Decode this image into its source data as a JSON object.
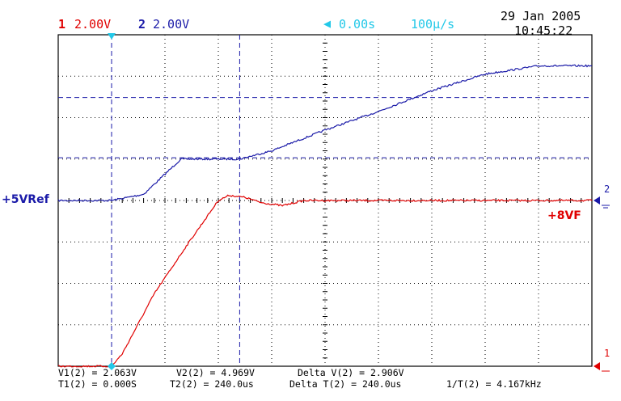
{
  "header": {
    "ch1_number": "1",
    "ch1_scale": "2.00V",
    "ch2_number": "2",
    "ch2_scale": "2.00V",
    "delay": "0.00s",
    "timebase": "100µ/s",
    "date": "29 Jan 2005",
    "time": "10:45:22"
  },
  "markers": {
    "ch2_left_label": "+5VRef",
    "ch1_right_label": "+8VF",
    "ch2_right_tag": "2",
    "ch1_right_tag": "1"
  },
  "measurements": {
    "v1": "V1(2) = 2.063V",
    "v2": "V2(2) = 4.969V",
    "delta_v": "Delta V(2) = 2.906V",
    "t1": "T1(2) = 0.000S",
    "t2": "T2(2) = 240.0us",
    "delta_t": "Delta T(2) = 240.0us",
    "inv_t": "1/T(2) = 4.167kHz"
  },
  "colors": {
    "ch1": "#e00000",
    "ch2": "#1a1aa8",
    "cursor": "#1a1aa8",
    "trigger": "#22c8e8",
    "grid": "#000000"
  },
  "chart_data": {
    "type": "line",
    "x_unit": "us",
    "y_unit": "V",
    "xlim": [
      -100,
      900
    ],
    "ylim": [
      -8,
      8
    ],
    "series": [
      {
        "name": "+5VRef",
        "channel": 2,
        "color": "#1a1aa8",
        "reference_level_v": 0,
        "x": [
          -100,
          0,
          60,
          130,
          200,
          240,
          300,
          400,
          500,
          600,
          700,
          800,
          900
        ],
        "y": [
          0.0,
          0.0,
          0.3,
          2.0,
          2.0,
          2.0,
          2.4,
          3.4,
          4.3,
          5.3,
          6.1,
          6.5,
          6.5
        ]
      },
      {
        "name": "+8VF",
        "channel": 1,
        "color": "#e00000",
        "reference_level_v": -8,
        "x": [
          -100,
          0,
          20,
          80,
          140,
          200,
          220,
          250,
          280,
          320,
          360,
          420,
          500,
          900
        ],
        "y": [
          -8.0,
          -8.0,
          -7.4,
          -4.5,
          -2.2,
          0.0,
          0.25,
          0.15,
          -0.1,
          -0.25,
          0.0,
          0.0,
          0.0,
          0.0
        ]
      }
    ],
    "cursors": {
      "x1_us": 0,
      "x2_us": 240,
      "y1_v": 2.063,
      "y2_v": 4.969
    },
    "grid": true
  }
}
